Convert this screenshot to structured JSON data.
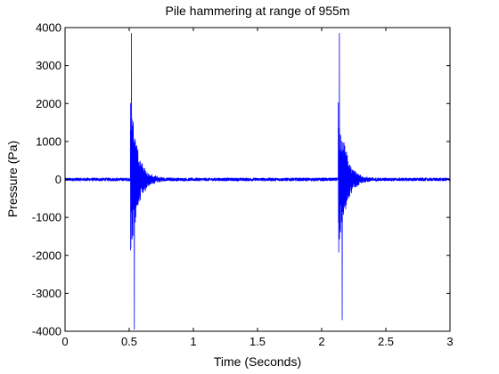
{
  "chart_data": {
    "type": "line",
    "title": "Pile hammering at range of 955m",
    "xlabel": "Time (Seconds)",
    "ylabel": "Pressure (Pa)",
    "xlim": [
      0,
      3
    ],
    "ylim": [
      -4000,
      4000
    ],
    "xticks": [
      0,
      0.5,
      1,
      1.5,
      2,
      2.5,
      3
    ],
    "xtick_labels": [
      "0",
      "0.5",
      "1",
      "1.5",
      "2",
      "2.5",
      "3"
    ],
    "yticks": [
      -4000,
      -3000,
      -2000,
      -1000,
      0,
      1000,
      2000,
      3000,
      4000
    ],
    "ytick_labels": [
      "-4000",
      "-3000",
      "-2000",
      "-1000",
      "0",
      "1000",
      "2000",
      "3000",
      "4000"
    ],
    "grid": false,
    "line_color": "#0000ff",
    "series": [
      {
        "pulses": [
          {
            "onset_s": 0.51,
            "peak_positive_pa": 3850,
            "peak_negative_pa": -3950,
            "decay_s": 0.2
          },
          {
            "onset_s": 2.13,
            "peak_positive_pa": 3850,
            "peak_negative_pa": -3700,
            "decay_s": 0.2
          }
        ],
        "background_noise_pa": 40
      }
    ]
  }
}
